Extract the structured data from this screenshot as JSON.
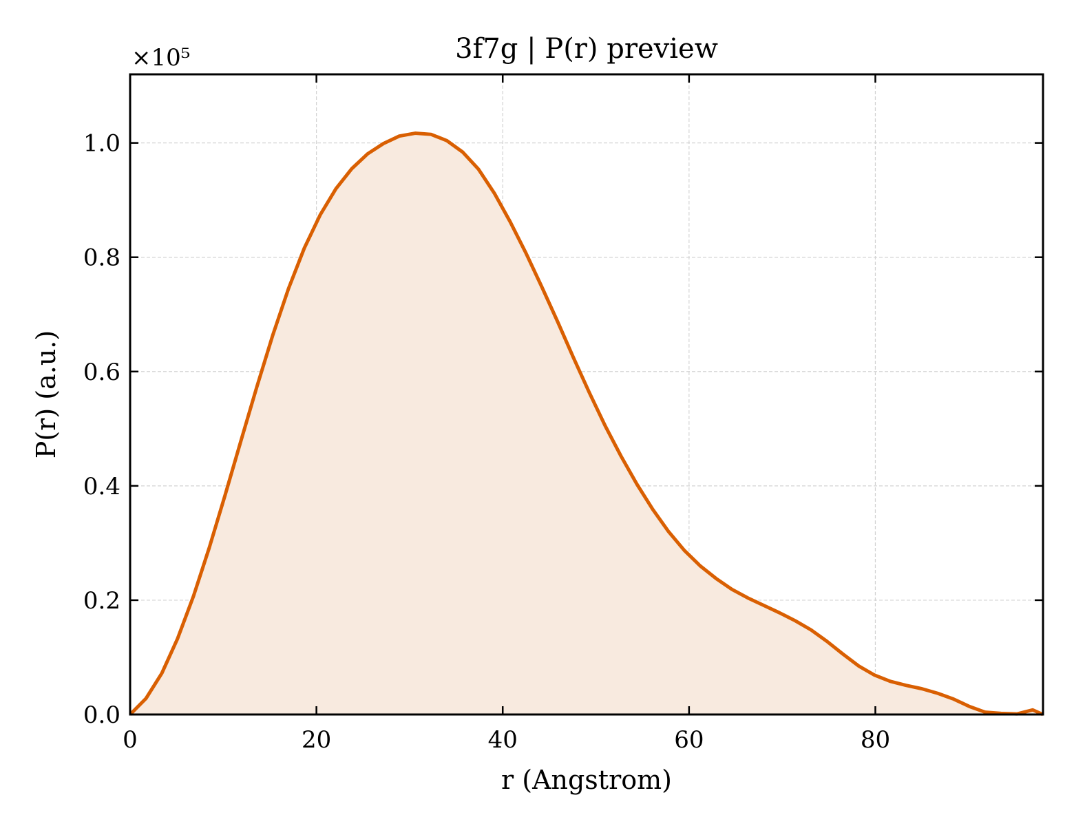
{
  "chart_data": {
    "type": "area",
    "title": "3f7g | P(r) preview",
    "xlabel": "r (Angstrom)",
    "ylabel": "P(r) (a.u.)",
    "y_offset_label": "×10⁵",
    "y_scale": 100000,
    "xlim": [
      0,
      98
    ],
    "ylim": [
      0,
      1.12
    ],
    "xticks": [
      0,
      20,
      40,
      60,
      80
    ],
    "xtick_labels": [
      "0",
      "20",
      "40",
      "60",
      "80"
    ],
    "yticks": [
      0.0,
      0.2,
      0.4,
      0.6,
      0.8,
      1.0
    ],
    "ytick_labels": [
      "0.0",
      "0.2",
      "0.4",
      "0.6",
      "0.8",
      "1.0"
    ],
    "grid": true,
    "line_color": "#d95f02",
    "fill_color": "#f8eadf",
    "series": [
      {
        "x": [
          0,
          1.7,
          3.4,
          5.1,
          6.8,
          8.5,
          10.2,
          11.9,
          13.6,
          15.3,
          17.0,
          18.7,
          20.4,
          22.1,
          23.8,
          25.5,
          27.2,
          28.9,
          30.6,
          32.3,
          34.0,
          35.7,
          37.4,
          39.1,
          40.8,
          42.5,
          44.2,
          45.9,
          47.6,
          49.3,
          51.0,
          52.7,
          54.4,
          56.1,
          57.8,
          59.5,
          61.2,
          62.9,
          64.6,
          66.3,
          68.0,
          69.7,
          71.4,
          73.1,
          74.8,
          76.5,
          78.2,
          79.9,
          81.6,
          83.3,
          85.0,
          86.7,
          88.4,
          90.1,
          91.8,
          93.5,
          95.2,
          96.9,
          98.0
        ],
        "y": [
          0.0,
          0.028,
          0.072,
          0.133,
          0.207,
          0.292,
          0.384,
          0.479,
          0.573,
          0.663,
          0.745,
          0.816,
          0.874,
          0.92,
          0.955,
          0.981,
          0.999,
          1.012,
          1.017,
          1.015,
          1.004,
          0.984,
          0.954,
          0.912,
          0.862,
          0.807,
          0.748,
          0.687,
          0.624,
          0.563,
          0.505,
          0.452,
          0.403,
          0.359,
          0.32,
          0.287,
          0.26,
          0.238,
          0.219,
          0.204,
          0.191,
          0.178,
          0.164,
          0.148,
          0.128,
          0.106,
          0.085,
          0.069,
          0.058,
          0.051,
          0.045,
          0.037,
          0.027,
          0.014,
          0.004,
          0.002,
          0.001,
          0.008,
          0.0
        ]
      }
    ]
  }
}
